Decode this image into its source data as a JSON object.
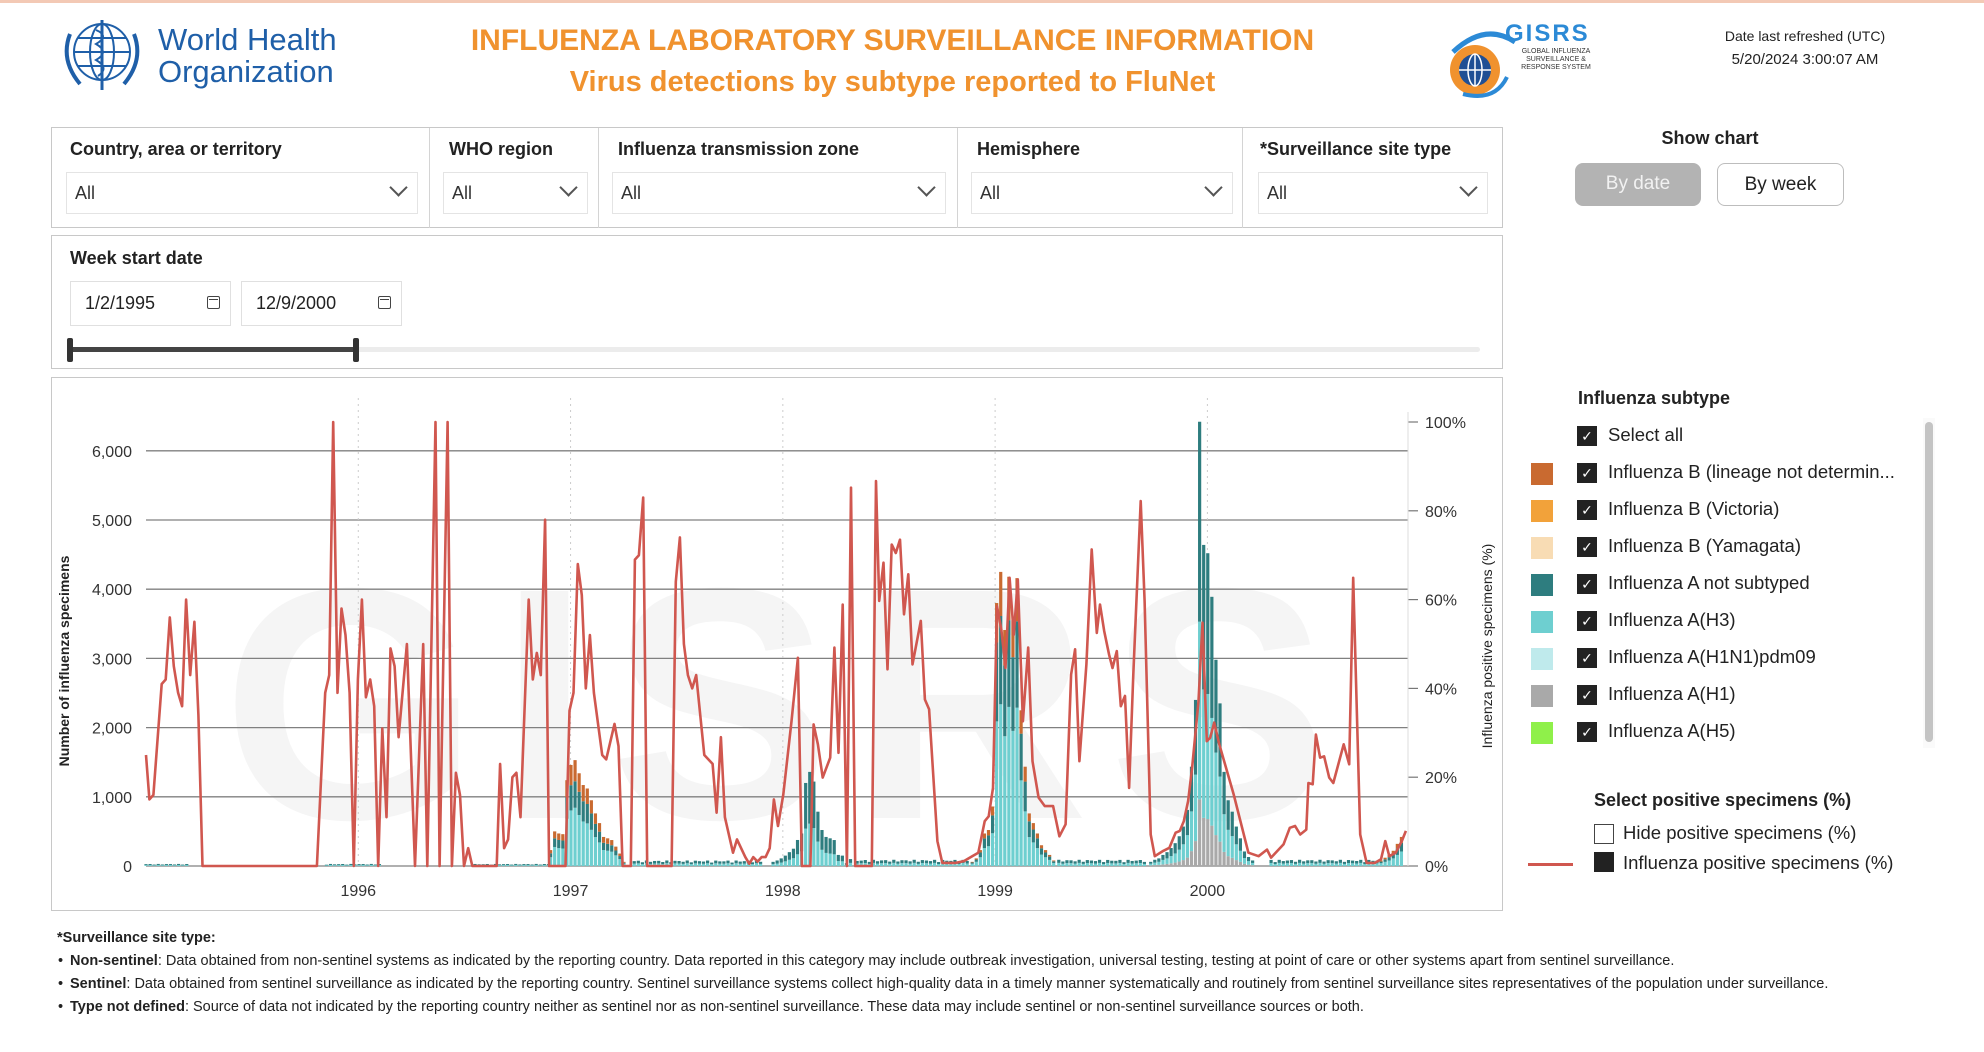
{
  "header": {
    "who_logo_text_1": "World Health",
    "who_logo_text_2": "Organization",
    "title": "INFLUENZA LABORATORY SURVEILLANCE INFORMATION",
    "subtitle": "Virus detections by subtype reported to FluNet",
    "gisrs_logo": {
      "name": "GISRS",
      "line1": "GLOBAL INFLUENZA",
      "line2": "SURVEILLANCE &",
      "line3": "RESPONSE SYSTEM"
    },
    "refresh_label": "Date last refreshed (UTC)",
    "refresh_value": "5/20/2024 3:00:07 AM"
  },
  "filters": [
    {
      "label": "Country, area or territory",
      "value": "All"
    },
    {
      "label": "WHO region",
      "value": "All"
    },
    {
      "label": "Influenza transmission zone",
      "value": "All"
    },
    {
      "label": "Hemisphere",
      "value": "All"
    },
    {
      "label": "*Surveillance site type",
      "value": "All"
    }
  ],
  "show_chart": {
    "label": "Show chart",
    "by_date": "By date",
    "by_week": "By week",
    "selected": "By date"
  },
  "date_range": {
    "label": "Week start date",
    "start": "1/2/1995",
    "end": "12/9/2000"
  },
  "legend": {
    "title": "Influenza subtype",
    "select_all": "Select all",
    "items": [
      {
        "key": "b_nd",
        "label": "Influenza B (lineage not determin...",
        "color": "#c96a30",
        "checked": true
      },
      {
        "key": "b_vic",
        "label": "Influenza B (Victoria)",
        "color": "#f2a23a",
        "checked": true
      },
      {
        "key": "b_yam",
        "label": "Influenza B (Yamagata)",
        "color": "#f8dcb4",
        "checked": true
      },
      {
        "key": "a_ns",
        "label": "Influenza A not subtyped",
        "color": "#2e7d7f",
        "checked": true
      },
      {
        "key": "h3",
        "label": "Influenza A(H3)",
        "color": "#6ecfd0",
        "checked": true
      },
      {
        "key": "h1pdm",
        "label": "Influenza A(H1N1)pdm09",
        "color": "#bfeaec",
        "checked": true
      },
      {
        "key": "h1",
        "label": "Influenza A(H1)",
        "color": "#a9a9a9",
        "checked": true
      },
      {
        "key": "h5",
        "label": "Influenza A(H5)",
        "color": "#8ff04a",
        "checked": true
      }
    ],
    "positive_title": "Select positive specimens (%)",
    "hide_positive": "Hide positive specimens (%)",
    "positive_series": "Influenza positive specimens (%)",
    "line_color": "#d0574f"
  },
  "chart_data": {
    "type": "bar+line",
    "ylabel": "Number of influenza specimens",
    "y2label": "Influenza positive specimens (%)",
    "xlim": [
      1995.0,
      2000.945
    ],
    "ylim": [
      0,
      6500
    ],
    "y2lim": [
      0,
      100
    ],
    "yticks": [
      "0",
      "1,000",
      "2,000",
      "3,000",
      "4,000",
      "5,000",
      "6,000"
    ],
    "yticks_values": [
      0,
      1000,
      2000,
      3000,
      4000,
      5000,
      6000
    ],
    "y2ticks": [
      "0%",
      "20%",
      "40%",
      "60%",
      "80%",
      "100%"
    ],
    "y2ticks_values": [
      0,
      20,
      40,
      60,
      80,
      100
    ],
    "xticks": [
      "1996",
      "1997",
      "1998",
      "1999",
      "2000"
    ],
    "xticks_values": [
      1996,
      1997,
      1998,
      1999,
      2000
    ],
    "week_step_years": 0.0192,
    "bar_seasons": [
      {
        "start": 1996.906,
        "totals": [
          230,
          500,
          470,
          460,
          1240,
          1460,
          1530,
          1340,
          1170,
          1120,
          950,
          760,
          620,
          420,
          400,
          375,
          280,
          180,
          60
        ],
        "mix": {
          "h3": 0.55,
          "a_ns": 0.25,
          "b_nd": 0.2
        }
      },
      {
        "start": 1997.954,
        "totals": [
          60,
          80,
          110,
          150,
          200,
          250,
          376,
          470,
          1200,
          1360,
          1220,
          785,
          520,
          420,
          400,
          375,
          160,
          150,
          40,
          100
        ],
        "mix": {
          "h3": 0.45,
          "a_ns": 0.55
        }
      },
      {
        "start": 1998.892,
        "totals": [
          60,
          110,
          230,
          470,
          520,
          860,
          3800,
          4250,
          3410,
          4180,
          3550,
          4160,
          2250,
          1435,
          760,
          620,
          470,
          300,
          230,
          160,
          80
        ],
        "mix": {
          "h3": 0.55,
          "a_ns": 0.3,
          "b_nd": 0.15
        }
      },
      {
        "start": 1999.733,
        "totals": [
          60,
          90,
          110,
          160,
          200,
          260,
          330,
          430,
          570,
          810,
          1435,
          2400,
          6420,
          4640,
          4520,
          3890,
          2980,
          2350,
          1360,
          950,
          785,
          570,
          400,
          210,
          130,
          80
        ],
        "mix": {
          "h1": 0.15,
          "h3": 0.4,
          "a_ns": 0.45
        }
      },
      {
        "start": 2000.818,
        "totals": [
          80,
          120,
          160,
          220,
          320,
          420
        ],
        "mix": {
          "h3": 0.5,
          "a_ns": 0.3,
          "b_nd": 0.2
        }
      }
    ],
    "baseline_periods": [
      [
        1995.0,
        1995.2,
        30
      ],
      [
        1995.85,
        1996.1,
        30
      ],
      [
        1996.55,
        1996.9,
        30
      ],
      [
        1997.3,
        1997.9,
        80
      ],
      [
        1998.35,
        1998.88,
        90
      ],
      [
        1999.3,
        1999.72,
        90
      ],
      [
        2000.3,
        2000.81,
        90
      ]
    ],
    "positive_pct": [
      [
        1995.0,
        25
      ],
      [
        1995.016,
        15
      ],
      [
        1995.035,
        16
      ],
      [
        1995.074,
        41
      ],
      [
        1995.093,
        42
      ],
      [
        1995.112,
        56
      ],
      [
        1995.131,
        45
      ],
      [
        1995.151,
        39
      ],
      [
        1995.17,
        36
      ],
      [
        1995.189,
        60
      ],
      [
        1995.208,
        43
      ],
      [
        1995.228,
        55
      ],
      [
        1995.247,
        34
      ],
      [
        1995.266,
        0
      ],
      [
        1995.805,
        0
      ],
      [
        1995.844,
        39
      ],
      [
        1995.863,
        43
      ],
      [
        1995.882,
        100
      ],
      [
        1995.902,
        39
      ],
      [
        1995.921,
        58
      ],
      [
        1995.94,
        52
      ],
      [
        1995.959,
        39
      ],
      [
        1995.979,
        0
      ],
      [
        1995.998,
        42
      ],
      [
        1996.017,
        60
      ],
      [
        1996.036,
        38
      ],
      [
        1996.056,
        42
      ],
      [
        1996.075,
        36
      ],
      [
        1996.094,
        0
      ],
      [
        1996.113,
        31
      ],
      [
        1996.133,
        11
      ],
      [
        1996.152,
        49
      ],
      [
        1996.171,
        45
      ],
      [
        1996.19,
        29
      ],
      [
        1996.229,
        50
      ],
      [
        1996.267,
        0
      ],
      [
        1996.306,
        50
      ],
      [
        1996.325,
        0
      ],
      [
        1996.364,
        100
      ],
      [
        1996.383,
        0
      ],
      [
        1996.421,
        100
      ],
      [
        1996.441,
        0
      ],
      [
        1996.46,
        21
      ],
      [
        1996.479,
        16
      ],
      [
        1996.498,
        0
      ],
      [
        1996.518,
        4
      ],
      [
        1996.537,
        0
      ],
      [
        1996.652,
        0
      ],
      [
        1996.668,
        23
      ],
      [
        1996.687,
        4
      ],
      [
        1996.706,
        6
      ],
      [
        1996.726,
        20
      ],
      [
        1996.745,
        21
      ],
      [
        1996.764,
        11
      ],
      [
        1996.803,
        60
      ],
      [
        1996.822,
        42
      ],
      [
        1996.841,
        48
      ],
      [
        1996.86,
        43
      ],
      [
        1996.88,
        78
      ],
      [
        1996.899,
        0
      ],
      [
        1996.976,
        0
      ],
      [
        1996.995,
        35
      ],
      [
        1997.014,
        39
      ],
      [
        1997.034,
        68
      ],
      [
        1997.053,
        61
      ],
      [
        1997.072,
        40
      ],
      [
        1997.091,
        52
      ],
      [
        1997.11,
        39
      ],
      [
        1997.149,
        25
      ],
      [
        1997.168,
        24
      ],
      [
        1997.207,
        32
      ],
      [
        1997.226,
        27
      ],
      [
        1997.245,
        0
      ],
      [
        1997.284,
        0
      ],
      [
        1997.303,
        69
      ],
      [
        1997.322,
        70
      ],
      [
        1997.342,
        83
      ],
      [
        1997.361,
        0
      ],
      [
        1997.476,
        0
      ],
      [
        1997.496,
        64
      ],
      [
        1997.515,
        74
      ],
      [
        1997.534,
        50
      ],
      [
        1997.553,
        43
      ],
      [
        1997.573,
        40
      ],
      [
        1997.592,
        43
      ],
      [
        1997.63,
        25
      ],
      [
        1997.669,
        23
      ],
      [
        1997.688,
        12
      ],
      [
        1997.708,
        29
      ],
      [
        1997.727,
        11
      ],
      [
        1997.765,
        3
      ],
      [
        1997.784,
        6
      ],
      [
        1997.823,
        2
      ],
      [
        1997.842,
        0.5
      ],
      [
        1997.861,
        2
      ],
      [
        1997.881,
        1
      ],
      [
        1997.9,
        2
      ],
      [
        1997.919,
        2
      ],
      [
        1997.938,
        4
      ],
      [
        1997.958,
        15
      ],
      [
        1997.977,
        9
      ],
      [
        1998.002,
        16.1
      ],
      [
        1998.041,
        32.6
      ],
      [
        1998.071,
        46.9
      ],
      [
        1998.09,
        0
      ],
      [
        1998.13,
        0
      ],
      [
        1998.145,
        31.9
      ],
      [
        1998.165,
        27.4
      ],
      [
        1998.188,
        19.9
      ],
      [
        1998.223,
        24.4
      ],
      [
        1998.243,
        49.2
      ],
      [
        1998.262,
        25.5
      ],
      [
        1998.282,
        58.9
      ],
      [
        1998.302,
        0
      ],
      [
        1998.321,
        85.2
      ],
      [
        1998.341,
        0
      ],
      [
        1998.419,
        0
      ],
      [
        1998.439,
        86.7
      ],
      [
        1998.454,
        59.7
      ],
      [
        1998.474,
        68.3
      ],
      [
        1998.493,
        44.3
      ],
      [
        1998.513,
        72.4
      ],
      [
        1998.532,
        70.5
      ],
      [
        1998.552,
        73.5
      ],
      [
        1998.571,
        56.7
      ],
      [
        1998.591,
        65.7
      ],
      [
        1998.611,
        45.4
      ],
      [
        1998.65,
        55.2
      ],
      [
        1998.669,
        37.5
      ],
      [
        1998.689,
        35.3
      ],
      [
        1998.728,
        5.6
      ],
      [
        1998.751,
        0.7
      ],
      [
        1998.775,
        0.7
      ],
      [
        1998.814,
        0.7
      ],
      [
        1998.853,
        1.1
      ],
      [
        1998.892,
        2.2
      ],
      [
        1998.921,
        3
      ],
      [
        1998.951,
        10.1
      ],
      [
        1998.97,
        11.2
      ],
      [
        1998.99,
        17.6
      ],
      [
        1999.009,
        58.5
      ],
      [
        1999.029,
        53.3
      ],
      [
        1999.049,
        44.6
      ],
      [
        1999.068,
        64.9
      ],
      [
        1999.088,
        52.1
      ],
      [
        1999.107,
        64.5
      ],
      [
        1999.131,
        32.6
      ],
      [
        1999.156,
        49.2
      ],
      [
        1999.176,
        23.6
      ],
      [
        1999.205,
        15.4
      ],
      [
        1999.234,
        13.5
      ],
      [
        1999.273,
        13.5
      ],
      [
        1999.303,
        6.7
      ],
      [
        1999.332,
        9.4
      ],
      [
        1999.358,
        43.1
      ],
      [
        1999.377,
        48.8
      ],
      [
        1999.397,
        23.6
      ],
      [
        1999.43,
        45.4
      ],
      [
        1999.455,
        71.3
      ],
      [
        1999.479,
        52.5
      ],
      [
        1999.494,
        58.9
      ],
      [
        1999.514,
        52.9
      ],
      [
        1999.537,
        47.6
      ],
      [
        1999.553,
        44.6
      ],
      [
        1999.573,
        48.4
      ],
      [
        1999.592,
        36
      ],
      [
        1999.612,
        38.3
      ],
      [
        1999.631,
        17.6
      ],
      [
        1999.651,
        43.1
      ],
      [
        1999.686,
        82.2
      ],
      [
        1999.704,
        59.7
      ],
      [
        1999.733,
        7.1
      ],
      [
        1999.752,
        2.2
      ],
      [
        1999.792,
        3.4
      ],
      [
        1999.821,
        4.1
      ],
      [
        1999.85,
        7.5
      ],
      [
        1999.87,
        7.9
      ],
      [
        1999.889,
        10.1
      ],
      [
        1999.909,
        14.6
      ],
      [
        1999.928,
        22.1
      ],
      [
        1999.958,
        37.1
      ],
      [
        1999.977,
        54.8
      ],
      [
        1999.997,
        28.1
      ],
      [
        2000.013,
        28.9
      ],
      [
        2000.032,
        32.3
      ],
      [
        2000.056,
        27.4
      ],
      [
        2000.124,
        16.1
      ],
      [
        2000.193,
        3
      ],
      [
        2000.241,
        2.2
      ],
      [
        2000.281,
        3.7
      ],
      [
        2000.3,
        1.9
      ],
      [
        2000.359,
        4.9
      ],
      [
        2000.388,
        8.6
      ],
      [
        2000.413,
        9
      ],
      [
        2000.437,
        7.1
      ],
      [
        2000.466,
        8.2
      ],
      [
        2000.476,
        18.7
      ],
      [
        2000.496,
        18.4
      ],
      [
        2000.511,
        29.6
      ],
      [
        2000.531,
        24.4
      ],
      [
        2000.55,
        24.7
      ],
      [
        2000.574,
        19.9
      ],
      [
        2000.593,
        18.7
      ],
      [
        2000.642,
        27.4
      ],
      [
        2000.668,
        22.9
      ],
      [
        2000.687,
        64.9
      ],
      [
        2000.72,
        7.1
      ],
      [
        2000.75,
        0.7
      ],
      [
        2000.789,
        0.7
      ],
      [
        2000.818,
        1.5
      ],
      [
        2000.838,
        5.6
      ],
      [
        2000.857,
        2.2
      ],
      [
        2000.887,
        3
      ],
      [
        2000.916,
        5.6
      ],
      [
        2000.935,
        7.9
      ]
    ],
    "watermark": "GISRS"
  },
  "footer": {
    "heading": "*Surveillance site type:",
    "items": [
      {
        "term": "Non-sentinel",
        "text": ": Data obtained from non-sentinel systems as indicated by the reporting country. Data reported in this category may include outbreak investigation, universal testing, testing at point of care or other systems apart from sentinel surveillance."
      },
      {
        "term": "Sentinel",
        "text": ": Data obtained from sentinel surveillance as indicated by the reporting country. Sentinel surveillance systems collect high-quality data in a timely manner systematically and routinely from sentinel surveillance sites representatives of the population under surveillance."
      },
      {
        "term": "Type not defined",
        "text": ": Source of data not indicated by the reporting country neither as sentinel nor as non-sentinel surveillance. These data may include sentinel or non-sentinel surveillance sources or both."
      }
    ]
  }
}
